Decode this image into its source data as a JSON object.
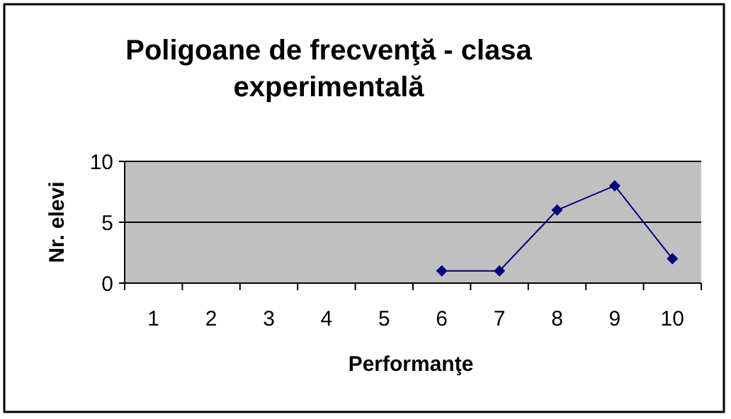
{
  "chart_data": {
    "type": "line",
    "title": "Poligoane de frecvenţă - clasa experimentală",
    "xlabel": "Performanţe",
    "ylabel": "Nr. elevi",
    "categories": [
      "1",
      "2",
      "3",
      "4",
      "5",
      "6",
      "7",
      "8",
      "9",
      "10"
    ],
    "series": [
      {
        "color": "#000080",
        "values": [
          null,
          null,
          null,
          null,
          null,
          1,
          1,
          6,
          8,
          2
        ]
      }
    ],
    "ylim": [
      0,
      10
    ],
    "yticks": [
      0,
      5,
      10
    ],
    "grid": "y",
    "marker": "diamond",
    "line_style": "solid"
  }
}
